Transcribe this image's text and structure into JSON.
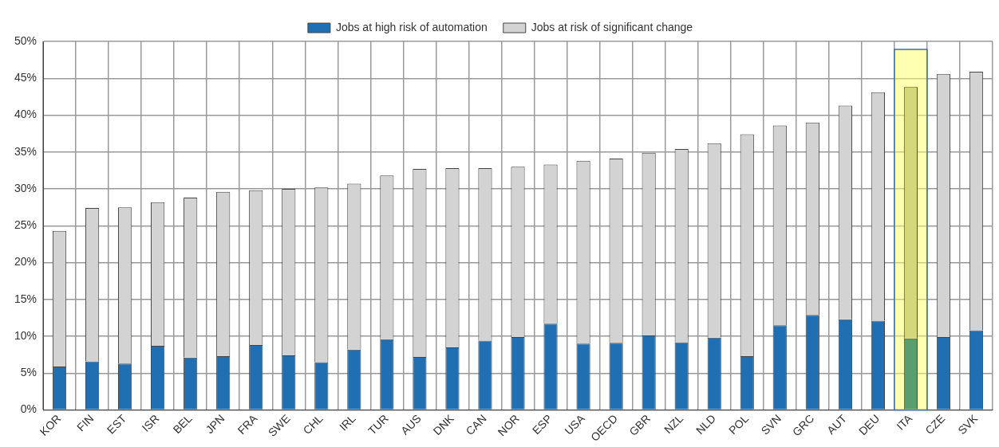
{
  "chart_data": {
    "type": "bar",
    "stacked": true,
    "categories": [
      "KOR",
      "FIN",
      "EST",
      "ISR",
      "BEL",
      "JPN",
      "FRA",
      "SWE",
      "CHL",
      "IRL",
      "TUR",
      "AUS",
      "DNK",
      "CAN",
      "NOR",
      "ESP",
      "USA",
      "OECD",
      "GBR",
      "NZL",
      "NLD",
      "POL",
      "SVN",
      "GRC",
      "AUT",
      "DEU",
      "ITA",
      "CZE",
      "SVK"
    ],
    "series": [
      {
        "name": "Jobs at high risk of automation",
        "color": "#1f6fb2",
        "colors": [
          "#1f6fb2",
          "#1f6fb2",
          "#1f6fb2",
          "#1f6fb2",
          "#1f6fb2",
          "#1f6fb2",
          "#1f6fb2",
          "#1f6fb2",
          "#1f6fb2",
          "#1f6fb2",
          "#1f6fb2",
          "#1f6fb2",
          "#1f6fb2",
          "#1f6fb2",
          "#1f6fb2",
          "#1f6fb2",
          "#1f6fb2",
          "#1f6fb2",
          "#1f6fb2",
          "#1f6fb2",
          "#1f6fb2",
          "#1f6fb2",
          "#1f6fb2",
          "#1f6fb2",
          "#1f6fb2",
          "#1f6fb2",
          "#5a9e6f",
          "#1f6fb2",
          "#1f6fb2"
        ],
        "values": [
          5.9,
          6.6,
          6.3,
          8.7,
          7.1,
          7.3,
          8.8,
          7.4,
          6.5,
          8.2,
          9.6,
          7.2,
          8.5,
          9.4,
          9.9,
          11.7,
          9.0,
          9.1,
          10.1,
          9.2,
          9.8,
          7.3,
          11.5,
          12.9,
          12.3,
          12.1,
          9.7,
          9.9,
          10.8
        ]
      },
      {
        "name": "Jobs at risk of significant change",
        "color": "#d3d3d3",
        "colors": [
          "#d3d3d3",
          "#d3d3d3",
          "#d3d3d3",
          "#d3d3d3",
          "#d3d3d3",
          "#d3d3d3",
          "#d3d3d3",
          "#d3d3d3",
          "#d3d3d3",
          "#d3d3d3",
          "#d3d3d3",
          "#d3d3d3",
          "#d3d3d3",
          "#d3d3d3",
          "#d3d3d3",
          "#d3d3d3",
          "#d3d3d3",
          "#d3d3d3",
          "#d3d3d3",
          "#d3d3d3",
          "#d3d3d3",
          "#d3d3d3",
          "#d3d3d3",
          "#d3d3d3",
          "#d3d3d3",
          "#d3d3d3",
          "#d4d87a",
          "#d3d3d3",
          "#d3d3d3"
        ],
        "values": [
          18.4,
          20.8,
          21.2,
          19.5,
          21.7,
          22.3,
          21.0,
          22.6,
          23.7,
          22.5,
          22.2,
          25.5,
          24.3,
          23.4,
          23.1,
          21.6,
          24.8,
          25.0,
          24.8,
          26.2,
          26.4,
          30.1,
          27.1,
          26.1,
          29.0,
          31.0,
          34.1,
          35.7,
          35.1
        ]
      }
    ],
    "ylim": [
      0,
      50
    ],
    "yticks": [
      {
        "value": 0,
        "label": "0%"
      },
      {
        "value": 5,
        "label": "5%"
      },
      {
        "value": 10,
        "label": "10%"
      },
      {
        "value": 15,
        "label": "15%"
      },
      {
        "value": 20,
        "label": "20%"
      },
      {
        "value": 25,
        "label": "25%"
      },
      {
        "value": 30,
        "label": "30%"
      },
      {
        "value": 35,
        "label": "35%"
      },
      {
        "value": 40,
        "label": "40%"
      },
      {
        "value": 45,
        "label": "45%"
      },
      {
        "value": 50,
        "label": "50%"
      }
    ],
    "bands": [
      {
        "axis": "x",
        "from": "ITA",
        "to": "ITA",
        "color": "#ffff66"
      }
    ],
    "grid": true,
    "legend": "top"
  }
}
